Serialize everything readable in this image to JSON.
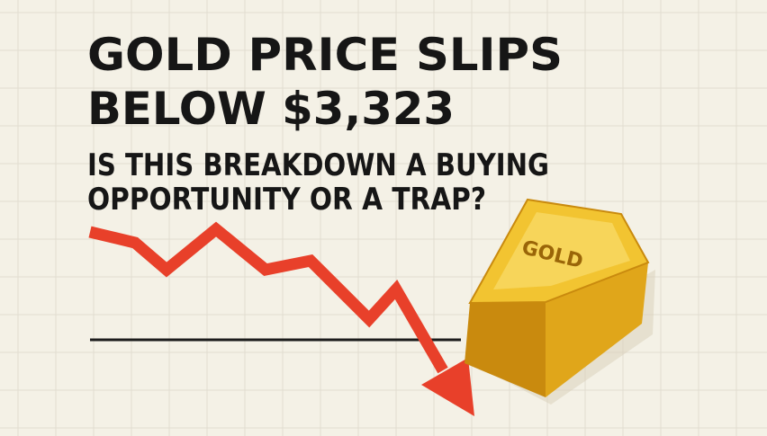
{
  "headline": {
    "lines": [
      "GOLD PRICE SLIPS",
      "BELOW $3,323"
    ]
  },
  "subheadline": {
    "lines": [
      "IS THIS BREAKDOWN A BUYING",
      "OPPORTUNITY OR A TRAP?"
    ]
  },
  "illustration": {
    "bar_label": "GOLD"
  }
}
